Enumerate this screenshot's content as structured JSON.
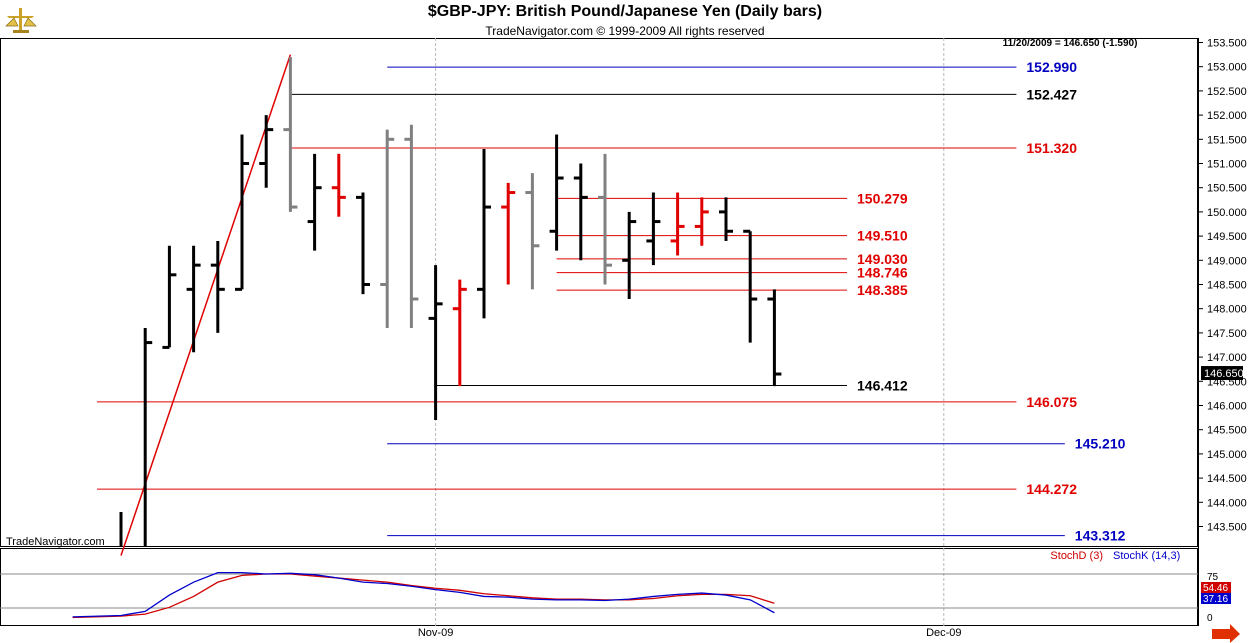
{
  "window": {
    "title": "$GBP-JPY:  British Pound/Japanese Yen  (Daily bars)",
    "copyright": "TradeNavigator.com © 1999-2009 All rights reserved",
    "watermark": "TradeNavigator.com",
    "last_price_info": "11/20/2009 = 146.650 (-1.590)",
    "last_price_badge": "146.650",
    "logo_icon": "scales-icon",
    "arrow_icon": "right-arrow-icon"
  },
  "colors": {
    "black": "#000000",
    "red": "#e00000",
    "gray": "#808080",
    "blue": "#0000c0",
    "stochD": "#d00000",
    "stochK": "#0000cc"
  },
  "chart_data": [
    {
      "type": "ohlc",
      "y_axis_side": "right",
      "ylim": [
        142.9,
        153.6
      ],
      "ticks": [
        "153.500",
        "153.000",
        "152.500",
        "152.000",
        "151.500",
        "151.000",
        "150.500",
        "150.000",
        "149.500",
        "149.000",
        "148.500",
        "148.000",
        "147.500",
        "147.000",
        "146.500",
        "146.000",
        "145.500",
        "145.000",
        "144.500",
        "144.000",
        "143.500"
      ],
      "x_ticks": [
        {
          "label": "Nov-09",
          "bar": 14.0
        },
        {
          "label": "Dec-09",
          "bar": 35.0
        }
      ],
      "bars": [
        {
          "i": 1,
          "open": null,
          "high": 143.8,
          "low": 142.9,
          "close": null,
          "color": "black"
        },
        {
          "i": 2,
          "open": null,
          "high": 147.6,
          "low": 142.9,
          "close": 147.3,
          "color": "black"
        },
        {
          "i": 3,
          "open": 147.2,
          "high": 149.3,
          "low": 147.2,
          "close": 148.7,
          "color": "black"
        },
        {
          "i": 4,
          "open": 148.4,
          "high": 149.3,
          "low": 147.1,
          "close": 148.9,
          "color": "black"
        },
        {
          "i": 5,
          "open": 148.9,
          "high": 149.4,
          "low": 147.5,
          "close": 148.4,
          "color": "black"
        },
        {
          "i": 6,
          "open": 148.4,
          "high": 151.6,
          "low": 148.4,
          "close": 151.0,
          "color": "black"
        },
        {
          "i": 7,
          "open": 151.0,
          "high": 152.0,
          "low": 150.5,
          "close": 151.7,
          "color": "black"
        },
        {
          "i": 8,
          "open": 151.7,
          "high": 153.2,
          "low": 150.0,
          "close": 150.1,
          "color": "gray"
        },
        {
          "i": 9,
          "open": 149.8,
          "high": 151.2,
          "low": 149.2,
          "close": 150.5,
          "color": "black"
        },
        {
          "i": 10,
          "open": 150.5,
          "high": 151.2,
          "low": 149.9,
          "close": 150.3,
          "color": "red"
        },
        {
          "i": 11,
          "open": 150.3,
          "high": 150.4,
          "low": 148.3,
          "close": 148.5,
          "color": "black"
        },
        {
          "i": 12,
          "open": 148.5,
          "high": 151.7,
          "low": 147.6,
          "close": 151.5,
          "color": "gray"
        },
        {
          "i": 13,
          "open": 151.5,
          "high": 151.8,
          "low": 147.6,
          "close": 148.2,
          "color": "gray"
        },
        {
          "i": 14,
          "open": 147.8,
          "high": 148.9,
          "low": 145.7,
          "close": 148.1,
          "color": "black"
        },
        {
          "i": 15,
          "open": 148.0,
          "high": 148.6,
          "low": 146.4,
          "close": 148.4,
          "color": "red"
        },
        {
          "i": 16,
          "open": 148.4,
          "high": 151.3,
          "low": 147.8,
          "close": 150.1,
          "color": "black"
        },
        {
          "i": 17,
          "open": 150.1,
          "high": 150.6,
          "low": 148.5,
          "close": 150.4,
          "color": "red"
        },
        {
          "i": 18,
          "open": 150.4,
          "high": 150.8,
          "low": 148.4,
          "close": 149.3,
          "color": "gray"
        },
        {
          "i": 19,
          "open": 149.6,
          "high": 151.6,
          "low": 149.2,
          "close": 150.7,
          "color": "black"
        },
        {
          "i": 20,
          "open": 150.7,
          "high": 151.0,
          "low": 149.0,
          "close": 150.3,
          "color": "black"
        },
        {
          "i": 21,
          "open": 150.3,
          "high": 151.2,
          "low": 148.5,
          "close": 148.9,
          "color": "gray"
        },
        {
          "i": 22,
          "open": 149.0,
          "high": 150.0,
          "low": 148.2,
          "close": 149.8,
          "color": "black"
        },
        {
          "i": 23,
          "open": 149.4,
          "high": 150.4,
          "low": 148.9,
          "close": 149.8,
          "color": "black"
        },
        {
          "i": 24,
          "open": 149.4,
          "high": 150.4,
          "low": 149.1,
          "close": 149.7,
          "color": "red"
        },
        {
          "i": 25,
          "open": 149.7,
          "high": 150.3,
          "low": 149.3,
          "close": 150.0,
          "color": "red"
        },
        {
          "i": 26,
          "open": 150.0,
          "high": 150.3,
          "low": 149.4,
          "close": 149.6,
          "color": "black"
        },
        {
          "i": 27,
          "open": 149.6,
          "high": 149.6,
          "low": 147.3,
          "close": 148.2,
          "color": "black"
        },
        {
          "i": 28,
          "open": 148.2,
          "high": 148.4,
          "low": 146.4,
          "close": 146.65,
          "color": "black"
        }
      ],
      "trendline": {
        "from": {
          "bar": 1.0,
          "price": 142.9
        },
        "to": {
          "bar": 8.0,
          "price": 153.25
        },
        "color": "red"
      },
      "levels": [
        {
          "label": "152.990",
          "price": 152.99,
          "color": "blue",
          "from_bar": 12.0,
          "to_bar": 38.0
        },
        {
          "label": "152.427",
          "price": 152.427,
          "color": "black",
          "from_bar": 8.0,
          "to_bar": 38.0
        },
        {
          "label": "151.320",
          "price": 151.32,
          "color": "red",
          "from_bar": 8.0,
          "to_bar": 38.0
        },
        {
          "label": "150.279",
          "price": 150.279,
          "color": "red",
          "from_bar": 19.0,
          "to_bar": 31.0
        },
        {
          "label": "149.510",
          "price": 149.51,
          "color": "red",
          "from_bar": 19.0,
          "to_bar": 31.0
        },
        {
          "label": "149.030",
          "price": 149.03,
          "color": "red",
          "from_bar": 19.0,
          "to_bar": 31.0
        },
        {
          "label": "148.746",
          "price": 148.746,
          "color": "red",
          "from_bar": 19.0,
          "to_bar": 31.0
        },
        {
          "label": "148.385",
          "price": 148.385,
          "color": "red",
          "from_bar": 19.0,
          "to_bar": 31.0
        },
        {
          "label": "146.412",
          "price": 146.412,
          "color": "black",
          "from_bar": 14.0,
          "to_bar": 31.0
        },
        {
          "label": "146.075",
          "price": 146.075,
          "color": "red",
          "from_bar": 0.0,
          "to_bar": 38.0
        },
        {
          "label": "145.210",
          "price": 145.21,
          "color": "blue",
          "from_bar": 12.0,
          "to_bar": 40.0
        },
        {
          "label": "144.272",
          "price": 144.272,
          "color": "red",
          "from_bar": 0.0,
          "to_bar": 38.0
        },
        {
          "label": "143.312",
          "price": 143.312,
          "color": "blue",
          "from_bar": 12.0,
          "to_bar": 40.0
        }
      ]
    },
    {
      "type": "line",
      "ylim": [
        0,
        100
      ],
      "tick_labels": [
        "75",
        "0"
      ],
      "reference_lines": [
        75,
        25
      ],
      "series": [
        {
          "name": "StochD (3)",
          "color": "stochD",
          "x": [
            -1,
            1,
            2,
            3,
            4,
            5,
            6,
            7,
            8,
            9,
            10,
            11,
            12,
            13,
            14,
            15,
            16,
            17,
            18,
            19,
            20,
            21,
            22,
            23,
            24,
            25,
            26,
            27,
            28
          ],
          "values": [
            11,
            13,
            16,
            26,
            42,
            63,
            73,
            75,
            75,
            72,
            69,
            66,
            63,
            58,
            54,
            51,
            46,
            43,
            40,
            38,
            38,
            37,
            37,
            39,
            43,
            45,
            45,
            43,
            32
          ]
        },
        {
          "name": "StochK (14,3)",
          "color": "stochK",
          "x": [
            -1,
            1,
            2,
            3,
            4,
            5,
            6,
            7,
            8,
            9,
            10,
            11,
            12,
            13,
            14,
            15,
            16,
            17,
            18,
            19,
            20,
            21,
            22,
            23,
            24,
            25,
            26,
            27,
            28
          ],
          "values": [
            12,
            14,
            20,
            44,
            63,
            77,
            77,
            75,
            76,
            74,
            69,
            63,
            61,
            57,
            52,
            48,
            42,
            41,
            38,
            37,
            37,
            36,
            38,
            42,
            45,
            47,
            44,
            37,
            18
          ]
        }
      ],
      "value_badges": [
        {
          "label": "54.46",
          "color": "stochD"
        },
        {
          "label": "37.16",
          "color": "stochK"
        }
      ]
    }
  ]
}
